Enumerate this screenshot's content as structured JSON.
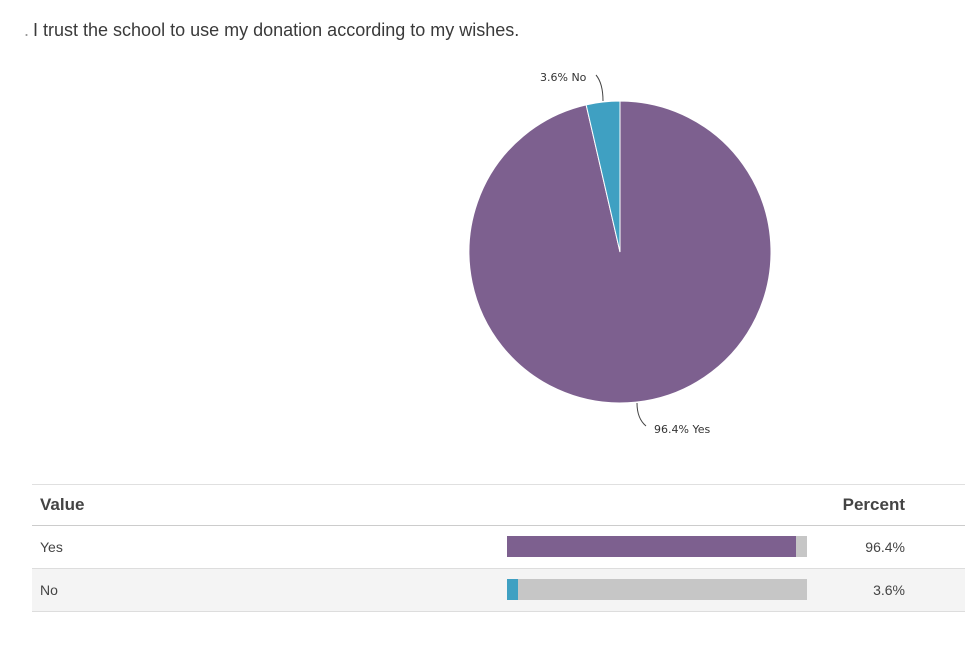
{
  "question": {
    "marker": ".",
    "text": "I trust the school to use my donation according to my wishes."
  },
  "chart_data": {
    "type": "pie",
    "slices": [
      {
        "label": "Yes",
        "percent": 96.4,
        "color": "#7d608f",
        "label_text": "96.4% Yes"
      },
      {
        "label": "No",
        "percent": 3.6,
        "color": "#3fa0c2",
        "label_text": "3.6% No"
      }
    ]
  },
  "table": {
    "headers": {
      "value": "Value",
      "percent": "Percent"
    },
    "rows": [
      {
        "label": "Yes",
        "percent": 96.4,
        "percent_text": "96.4%",
        "color": "#7d608f"
      },
      {
        "label": "No",
        "percent": 3.6,
        "percent_text": "3.6%",
        "color": "#3fa0c2"
      }
    ]
  }
}
